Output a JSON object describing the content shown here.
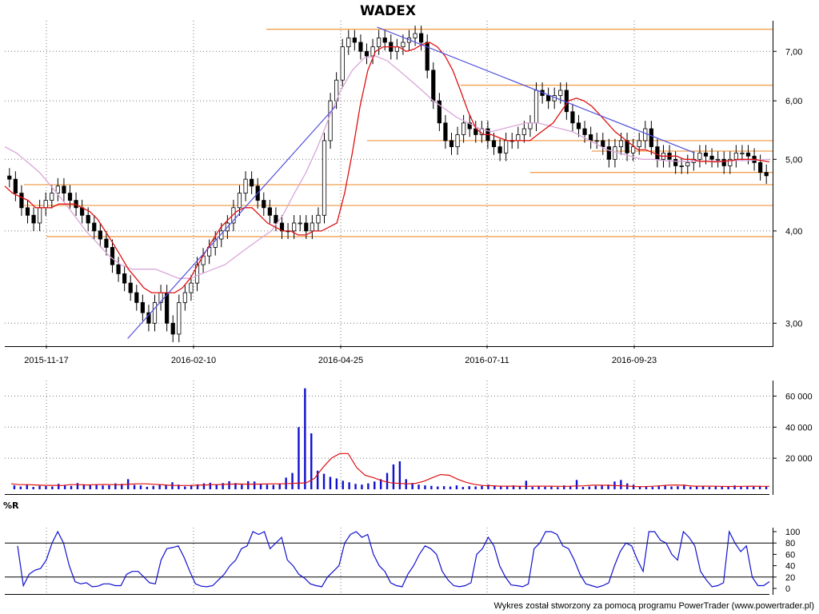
{
  "title": "WADEX",
  "credit": "Wykres został stworzony za pomocą programu PowerTrader (www.powertrader.pl)",
  "colors": {
    "up": "#ffffff",
    "down": "#000000",
    "wick": "#000000",
    "ma_short": "#e01010",
    "ma_long": "#d9a6d9",
    "levels": "#f0a050",
    "trend": "#5050dd",
    "volume": "#1010d0",
    "volume_ma": "#e01010",
    "wr": "#1010d0",
    "grid": "#777777"
  },
  "x_ticks": [
    "2015-11-17",
    "2016-02-10",
    "2016-04-25",
    "2016-07-11",
    "2016-09-23"
  ],
  "price_ticks": [
    "7,00",
    "6,00",
    "5,00",
    "4,00",
    "3,00"
  ],
  "volume_ticks": [
    "60 000",
    "40 000",
    "20 000"
  ],
  "wr_label": "%R",
  "wr_ticks": [
    "100",
    "80",
    "60",
    "40",
    "20",
    "0"
  ],
  "chart_data": [
    {
      "type": "candlestick",
      "title": "WADEX",
      "scale": "log",
      "ylim": [
        2.8,
        7.7
      ],
      "x_ticks": [
        "2015-11-17",
        "2016-02-10",
        "2016-04-25",
        "2016-07-11",
        "2016-09-23"
      ],
      "y_ticks": [
        3.0,
        4.0,
        5.0,
        6.0,
        7.0
      ],
      "closes": [
        4.7,
        4.5,
        4.3,
        4.2,
        4.1,
        4.3,
        4.4,
        4.5,
        4.6,
        4.5,
        4.4,
        4.3,
        4.2,
        4.1,
        4.0,
        3.9,
        3.8,
        3.6,
        3.5,
        3.4,
        3.3,
        3.2,
        3.1,
        3.0,
        3.2,
        3.3,
        3.0,
        2.9,
        3.2,
        3.3,
        3.4,
        3.6,
        3.7,
        3.8,
        3.9,
        4.0,
        4.1,
        4.3,
        4.5,
        4.7,
        4.6,
        4.4,
        4.3,
        4.2,
        4.1,
        4.0,
        4.0,
        4.1,
        4.1,
        4.0,
        4.1,
        4.2,
        5.3,
        6.0,
        6.4,
        7.1,
        7.3,
        7.2,
        7.0,
        6.9,
        7.1,
        7.3,
        7.2,
        7.0,
        7.1,
        7.2,
        7.3,
        7.4,
        7.2,
        6.6,
        6.0,
        5.6,
        5.3,
        5.2,
        5.4,
        5.6,
        5.5,
        5.4,
        5.5,
        5.3,
        5.2,
        5.1,
        5.3,
        5.3,
        5.4,
        5.5,
        5.6,
        6.2,
        6.1,
        6.0,
        6.1,
        6.2,
        5.8,
        5.6,
        5.5,
        5.4,
        5.3,
        5.3,
        5.2,
        5.0,
        5.2,
        5.3,
        5.1,
        5.2,
        5.3,
        5.5,
        5.2,
        5.0,
        5.1,
        5.0,
        4.9,
        4.9,
        4.95,
        5.0,
        5.1,
        5.05,
        5.0,
        5.0,
        4.9,
        5.0,
        5.1,
        5.1,
        5.05,
        4.95,
        4.8,
        4.75
      ],
      "ma_short": [
        4.6,
        4.5,
        4.45,
        4.4,
        4.3,
        4.3,
        4.3,
        4.35,
        4.35,
        4.35,
        4.3,
        4.25,
        4.15,
        4.0,
        3.85,
        3.7,
        3.55,
        3.45,
        3.35,
        3.3,
        3.3,
        3.3,
        3.3,
        3.35,
        3.45,
        3.6,
        3.75,
        3.9,
        4.05,
        4.15,
        4.25,
        4.3,
        4.3,
        4.2,
        4.1,
        4.05,
        4.0,
        4.0,
        3.95,
        3.95,
        4.0,
        4.0,
        4.05,
        4.1,
        4.5,
        5.1,
        5.9,
        6.6,
        7.0,
        7.1,
        7.1,
        7.1,
        7.0,
        7.05,
        7.15,
        7.2,
        7.1,
        6.9,
        6.6,
        6.2,
        5.8,
        5.5,
        5.4,
        5.4,
        5.35,
        5.3,
        5.3,
        5.3,
        5.3,
        5.4,
        5.5,
        5.6,
        5.8,
        6.0,
        6.05,
        6.0,
        5.9,
        5.75,
        5.6,
        5.45,
        5.35,
        5.25,
        5.15,
        5.15,
        5.1,
        5.05,
        5.05,
        5.05,
        5.0,
        5.0,
        4.97,
        4.97,
        4.96,
        4.97,
        4.98,
        5.0,
        5.0,
        5.0,
        4.98,
        4.96
      ],
      "ma_long": [
        5.2,
        5.1,
        4.95,
        4.8,
        4.6,
        4.4,
        4.2,
        4.0,
        3.85,
        3.7,
        3.6,
        3.55,
        3.55,
        3.55,
        3.5,
        3.45,
        3.45,
        3.5,
        3.55,
        3.6,
        3.7,
        3.8,
        3.9,
        4.0,
        4.2,
        4.5,
        4.8,
        5.2,
        5.7,
        6.2,
        6.6,
        6.85,
        6.9,
        6.8,
        6.6,
        6.4,
        6.2,
        6.0,
        5.85,
        5.7,
        5.6,
        5.5,
        5.45,
        5.5,
        5.55,
        5.6,
        5.6,
        5.55,
        5.5,
        5.45,
        5.35,
        5.25,
        5.15,
        5.1,
        5.05,
        5.0,
        5.0,
        4.98,
        4.97,
        4.97,
        4.97,
        4.97,
        4.97,
        4.98,
        4.98,
        4.99,
        5.0
      ],
      "levels": [
        7.5,
        6.3,
        5.3,
        5.13,
        4.8,
        4.62,
        4.33,
        3.93
      ],
      "trendlines": [
        {
          "from": [
            "2015-12-30",
            2.86
          ],
          "to": [
            "2016-04-18",
            5.9
          ]
        },
        {
          "from": [
            "2016-05-10",
            7.55
          ],
          "to": [
            "2016-10-25",
            5.1
          ]
        }
      ]
    },
    {
      "type": "bar",
      "title": "",
      "ylim": [
        0,
        70000
      ],
      "y_ticks": [
        20000,
        40000,
        60000
      ],
      "values": [
        2500,
        1800,
        3000,
        1500,
        2200,
        2000,
        1800,
        3500,
        2600,
        2200,
        4000,
        3200,
        2800,
        3000,
        2500,
        2600,
        3800,
        3500,
        6500,
        2800,
        2500,
        1600,
        2200,
        3000,
        2800,
        4500,
        3000,
        1800,
        2600,
        3200,
        3800,
        4200,
        3000,
        4000,
        5200,
        4000,
        3000,
        5200,
        5000,
        3500,
        3000,
        2800,
        3600,
        7500,
        10500,
        40000,
        65000,
        36000,
        12000,
        10000,
        8000,
        7000,
        5500,
        4500,
        3500,
        3000,
        3800,
        5000,
        6500,
        10500,
        16000,
        18000,
        6500,
        4000,
        3000,
        2500,
        2200,
        1800,
        2000,
        1800,
        2500,
        1500,
        2000,
        1800,
        2200,
        3000,
        2500,
        2200,
        1800,
        2500,
        2000,
        5500,
        1500,
        2000,
        1600,
        1700,
        1400,
        2500,
        2000,
        6000,
        1500,
        1800,
        2200,
        2600,
        3000,
        5000,
        6000,
        3800,
        3000,
        1800,
        2000,
        1500,
        2400,
        2800,
        1800,
        2000,
        3000,
        1600,
        1800,
        2000,
        1500,
        2200,
        2000,
        1800,
        2500,
        1800,
        2000,
        1600,
        2200,
        1800
      ],
      "ma": [
        3500,
        3000,
        3000,
        2800,
        2500,
        2500,
        2400,
        3000,
        3000,
        2800,
        3000,
        3100,
        3000,
        2900,
        3300,
        3500,
        3500,
        3200,
        2900,
        2500,
        2400,
        2400,
        2600,
        2800,
        3000,
        3100,
        3300,
        3400,
        3300,
        3300,
        3400,
        3500,
        3500,
        3700,
        3900,
        4100,
        7000,
        14000,
        20000,
        23000,
        23000,
        14000,
        9000,
        7500,
        5500,
        4200,
        3800,
        3500,
        3800,
        5200,
        7500,
        9500,
        9000,
        6500,
        4500,
        3200,
        2400,
        2300,
        2000,
        2000,
        2000,
        1900,
        2000,
        2000,
        2000,
        1900,
        1900,
        2100,
        2200,
        2600,
        2700,
        2500,
        2300,
        2100,
        1800,
        1700,
        1900,
        2200,
        2600,
        2800,
        2500,
        2000,
        2000,
        2000,
        1900,
        1800,
        1800,
        1900,
        2000,
        1900,
        1900
      ]
    },
    {
      "type": "line",
      "title": "%R",
      "ylim": [
        0,
        100
      ],
      "y_ticks": [
        0,
        20,
        40,
        60,
        80,
        100
      ],
      "series": [
        {
          "values": [
            75,
            5,
            25,
            32,
            35,
            50,
            80,
            100,
            80,
            40,
            12,
            8,
            10,
            3,
            4,
            8,
            8,
            5,
            5,
            25,
            30,
            30,
            20,
            10,
            8,
            50,
            70,
            72,
            75,
            55,
            30,
            8,
            4,
            3,
            5,
            15,
            25,
            40,
            50,
            70,
            75,
            100,
            95,
            100,
            70,
            80,
            90,
            50,
            40,
            25,
            18,
            8,
            5,
            3,
            20,
            30,
            40,
            80,
            95,
            100,
            90,
            95,
            60,
            40,
            30,
            10,
            5,
            3,
            25,
            40,
            60,
            75,
            70,
            60,
            30,
            15,
            5,
            3,
            5,
            10,
            60,
            70,
            90,
            75,
            40,
            20,
            6,
            5,
            3,
            8,
            70,
            80,
            100,
            100,
            95,
            75,
            70,
            50,
            25,
            8,
            5,
            2,
            5,
            10,
            40,
            65,
            80,
            75,
            50,
            30,
            100,
            100,
            85,
            80,
            60,
            50,
            100,
            90,
            75,
            30,
            15,
            3,
            5,
            10,
            100,
            80,
            65,
            75,
            20,
            5,
            5,
            12
          ]
        }
      ]
    }
  ]
}
